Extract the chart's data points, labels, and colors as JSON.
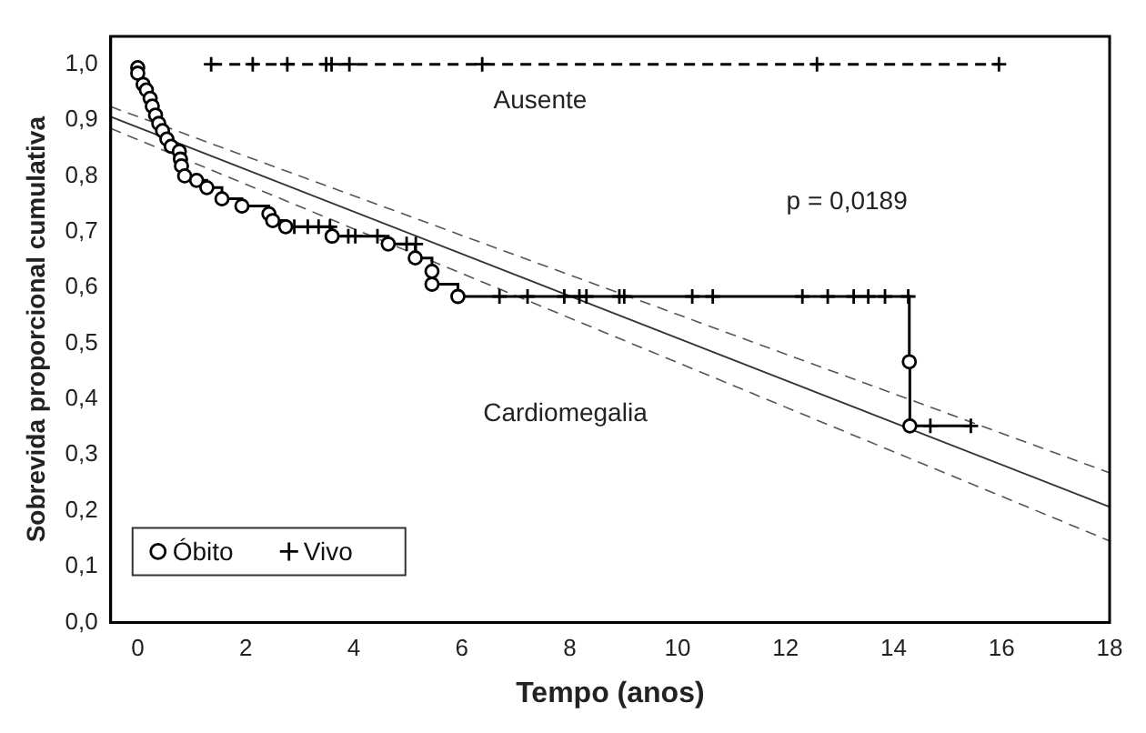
{
  "chart_data": {
    "type": "step",
    "xlabel": "Tempo (anos)",
    "ylabel": "Sobrevida proporcional cumulativa",
    "xlim": [
      -0.5,
      18
    ],
    "xticks": [
      0,
      2,
      4,
      6,
      8,
      10,
      12,
      14,
      16,
      18
    ],
    "ylim": [
      0,
      1.05
    ],
    "yticks": [
      {
        "value": 0,
        "label": "0,0"
      },
      {
        "value": 0.1,
        "label": "0,1"
      },
      {
        "value": 0.2,
        "label": "0,2"
      },
      {
        "value": 0.3,
        "label": "0,3"
      },
      {
        "value": 0.4,
        "label": "0,4"
      },
      {
        "value": 0.5,
        "label": "0,5"
      },
      {
        "value": 0.6,
        "label": "0,6"
      },
      {
        "value": 0.7,
        "label": "0,7"
      },
      {
        "value": 0.8,
        "label": "0,8"
      },
      {
        "value": 0.9,
        "label": "0,9"
      },
      {
        "value": 1,
        "label": "1,0"
      }
    ],
    "grid": false,
    "legend": "bottom left",
    "marker": "none",
    "line_style": "solid",
    "annotations": [
      "Ausente",
      "Cardiomegalia",
      "p = 0,0189"
    ],
    "series": [
      {
        "color": "#000000",
        "x": [
          0,
          0,
          0,
          0.1,
          0.16,
          0.23,
          0.27,
          0.33,
          0.39,
          0.46,
          0.54,
          0.62,
          0.77,
          0.79,
          0.81,
          0.87,
          1.09,
          1.28,
          1.56,
          1.93,
          2.43,
          2.5,
          2.74,
          3.6,
          4.64,
          5.14,
          5.45,
          5.45,
          5.93,
          14.29,
          14.3,
          15.43
        ],
        "values": [
          1,
          0.994,
          0.984,
          0.964,
          0.954,
          0.939,
          0.925,
          0.909,
          0.894,
          0.881,
          0.866,
          0.853,
          0.844,
          0.83,
          0.818,
          0.8,
          0.792,
          0.779,
          0.759,
          0.746,
          0.732,
          0.72,
          0.709,
          0.692,
          0.678,
          0.653,
          0.629,
          0.606,
          0.584,
          0.467,
          0.352,
          0.352
        ]
      },
      {
        "type": "line",
        "color": "#000000",
        "line_style": "dashed",
        "x": [
          1.36,
          15.95
        ],
        "values": [
          1,
          1
        ]
      },
      {
        "type": "line",
        "color": "#333333",
        "x": [
          -0.5,
          18
        ],
        "values": [
          0.906,
          0.207
        ]
      },
      {
        "type": "line",
        "color": "#555555",
        "line_style": "dashed",
        "x": [
          -0.5,
          18
        ],
        "values": [
          0.924,
          0.268
        ]
      },
      {
        "type": "line",
        "color": "#555555",
        "line_style": "dashed",
        "x": [
          -0.5,
          18
        ],
        "values": [
          0.885,
          0.146
        ]
      },
      {
        "type": "scatter",
        "name": "Óbito",
        "color": "#000000",
        "marker": "circle",
        "x": [
          0,
          0,
          0.1,
          0.16,
          0.23,
          0.27,
          0.33,
          0.39,
          0.46,
          0.54,
          0.62,
          0.77,
          0.79,
          0.81,
          0.87,
          1.09,
          1.28,
          1.56,
          1.93,
          2.43,
          2.5,
          2.74,
          3.6,
          4.64,
          5.14,
          5.45,
          5.45,
          5.93,
          14.29,
          14.3
        ],
        "values": [
          0.994,
          0.984,
          0.964,
          0.954,
          0.939,
          0.925,
          0.909,
          0.894,
          0.881,
          0.866,
          0.853,
          0.844,
          0.83,
          0.818,
          0.8,
          0.792,
          0.779,
          0.759,
          0.746,
          0.732,
          0.72,
          0.709,
          0.692,
          0.678,
          0.653,
          0.629,
          0.606,
          0.584,
          0.467,
          0.352
        ]
      },
      {
        "type": "scatter",
        "name": "Vivo",
        "color": "#000000",
        "marker": "cross",
        "x": [
          2.9,
          3.15,
          3.35,
          3.56,
          3.9,
          4.03,
          4.44,
          4.98,
          5.15,
          6.7,
          7.22,
          7.9,
          8.18,
          8.31,
          8.92,
          9.01,
          10.27,
          10.65,
          12.31,
          12.78,
          13.26,
          13.53,
          13.84,
          14.27,
          14.68,
          15.43,
          1.36,
          2.13,
          2.77,
          3.49,
          3.59,
          3.92,
          6.38,
          12.58,
          15.95
        ],
        "values": [
          0.709,
          0.709,
          0.709,
          0.709,
          0.692,
          0.692,
          0.692,
          0.678,
          0.678,
          0.584,
          0.584,
          0.584,
          0.584,
          0.584,
          0.584,
          0.584,
          0.584,
          0.584,
          0.584,
          0.584,
          0.584,
          0.584,
          0.584,
          0.584,
          0.352,
          0.352,
          1,
          1,
          1,
          1,
          1,
          1,
          1,
          1,
          1
        ]
      }
    ]
  }
}
